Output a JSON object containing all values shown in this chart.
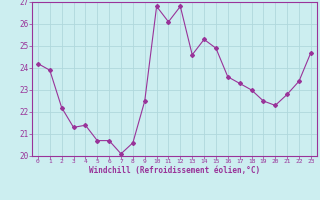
{
  "x": [
    0,
    1,
    2,
    3,
    4,
    5,
    6,
    7,
    8,
    9,
    10,
    11,
    12,
    13,
    14,
    15,
    16,
    17,
    18,
    19,
    20,
    21,
    22,
    23
  ],
  "y": [
    24.2,
    23.9,
    22.2,
    21.3,
    21.4,
    20.7,
    20.7,
    20.1,
    20.6,
    22.5,
    26.8,
    26.1,
    26.8,
    24.6,
    25.3,
    24.9,
    23.6,
    23.3,
    23.0,
    22.5,
    22.3,
    22.8,
    23.4,
    24.7
  ],
  "line_color": "#993399",
  "marker": "D",
  "marker_size": 2,
  "bg_color": "#cceef0",
  "grid_color": "#b0d8dc",
  "xlabel": "Windchill (Refroidissement éolien,°C)",
  "xlim": [
    -0.5,
    23.5
  ],
  "ylim": [
    20,
    27
  ],
  "yticks": [
    20,
    21,
    22,
    23,
    24,
    25,
    26,
    27
  ],
  "xticks": [
    0,
    1,
    2,
    3,
    4,
    5,
    6,
    7,
    8,
    9,
    10,
    11,
    12,
    13,
    14,
    15,
    16,
    17,
    18,
    19,
    20,
    21,
    22,
    23
  ],
  "spine_color": "#993399",
  "tick_color": "#993399",
  "label_color": "#993399"
}
